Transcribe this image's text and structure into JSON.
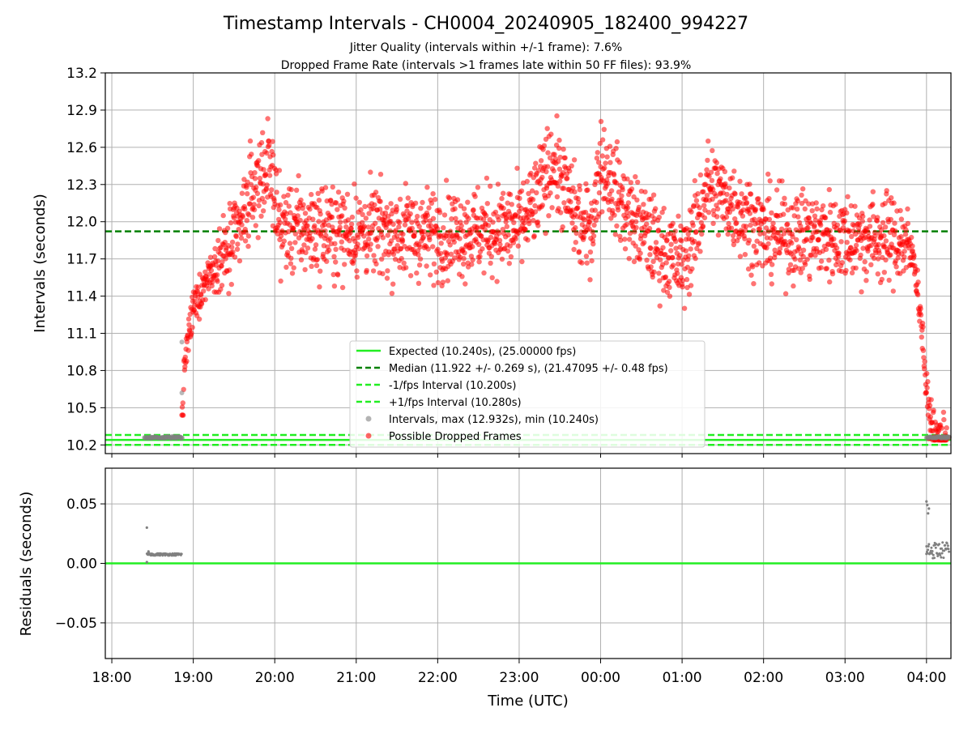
{
  "figure": {
    "title": "Timestamp Intervals - CH0004_20240905_182400_994227",
    "subtitle_line1": "Jitter Quality (intervals within +/-1 frame): 7.6%",
    "subtitle_line2": "Dropped Frame Rate (intervals >1 frames late within 50 FF files): 93.9%"
  },
  "colors": {
    "expected": "#22ee22",
    "median": "#008000",
    "interval_bounds": "#22ee22",
    "intervals": "#808080",
    "dropped": "#ff0000",
    "grid": "#b0b0b0"
  },
  "chart_data": [
    {
      "type": "scatter",
      "panel": "top",
      "ylabel": "Intervals (seconds)",
      "xlabel": "",
      "ylim": [
        10.13,
        13.2
      ],
      "xlim_hours": [
        17.92,
        28.3
      ],
      "grid": true,
      "legend_position": "lower center",
      "y_ticks": [
        "10.2",
        "10.5",
        "10.8",
        "11.1",
        "11.4",
        "11.7",
        "12.0",
        "12.3",
        "12.6",
        "12.9",
        "13.2"
      ],
      "y_tick_values": [
        10.2,
        10.5,
        10.8,
        11.1,
        11.4,
        11.7,
        12.0,
        12.3,
        12.6,
        12.9,
        13.2
      ],
      "lines": [
        {
          "name": "Expected (10.240s), (25.00000 fps)",
          "y": 10.24,
          "style": "solid"
        },
        {
          "name": "Median (11.922 +/- 0.269 s), (21.47095 +/- 0.48 fps)",
          "y": 11.922,
          "style": "dashed"
        },
        {
          "name": "-1/fps Interval (10.200s)",
          "y": 10.2,
          "style": "dashed"
        },
        {
          "name": "+1/fps Interval (10.280s)",
          "y": 10.28,
          "style": "dashed"
        }
      ],
      "series": [
        {
          "name": "Intervals, max (12.932s), min (10.240s)",
          "kind": "intervals"
        },
        {
          "name": "Possible Dropped Frames",
          "kind": "dropped"
        }
      ],
      "trend": {
        "x_hours": [
          18.4,
          18.85,
          18.9,
          19.0,
          19.2,
          19.5,
          19.7,
          19.9,
          20.0,
          20.05,
          21.0,
          22.0,
          23.0,
          23.2,
          23.4,
          23.6,
          23.8,
          23.9,
          24.0,
          24.3,
          24.7,
          25.0,
          25.2,
          25.3,
          25.6,
          26.0,
          27.0,
          27.7,
          27.85,
          27.95,
          28.0,
          28.1,
          28.28
        ],
        "y_mean": [
          10.26,
          10.26,
          10.9,
          11.3,
          11.6,
          11.8,
          12.2,
          12.45,
          12.3,
          11.95,
          11.92,
          11.9,
          11.95,
          12.15,
          12.5,
          12.2,
          11.9,
          12.0,
          12.5,
          12.1,
          11.8,
          11.65,
          12.0,
          12.3,
          12.15,
          11.9,
          11.88,
          11.85,
          11.7,
          11.1,
          10.6,
          10.27,
          10.26
        ],
        "scatter_sd": 0.18
      },
      "intervals_segments_hours": [
        [
          18.4,
          18.87
        ],
        [
          28.0,
          28.28
        ]
      ]
    },
    {
      "type": "scatter",
      "panel": "bottom",
      "ylabel": "Residuals (seconds)",
      "xlabel": "Time (UTC)",
      "ylim": [
        -0.08,
        0.08
      ],
      "grid": true,
      "y_ticks": [
        "0.05",
        "0.00",
        "−0.05"
      ],
      "y_tick_values": [
        0.05,
        0.0,
        -0.05
      ],
      "x_ticks": [
        "18:00",
        "19:00",
        "20:00",
        "21:00",
        "22:00",
        "23:00",
        "00:00",
        "01:00",
        "02:00",
        "03:00",
        "04:00"
      ],
      "x_tick_hours": [
        18,
        19,
        20,
        21,
        22,
        23,
        24,
        25,
        26,
        27,
        28
      ],
      "zero_line": 0.0,
      "residual_points": [
        {
          "x": 18.43,
          "y": 0.03
        },
        {
          "x": 18.43,
          "y": 0.001
        },
        {
          "x": 18.45,
          "y": 0.01
        },
        {
          "x": 28.0,
          "y": 0.052
        },
        {
          "x": 28.01,
          "y": 0.049
        },
        {
          "x": 28.03,
          "y": 0.046
        },
        {
          "x": 28.02,
          "y": 0.042
        },
        {
          "x": 28.0,
          "y": 0.008
        }
      ],
      "residual_band": {
        "x_range": [
          18.43,
          18.86
        ],
        "y": 0.0075
      }
    }
  ]
}
